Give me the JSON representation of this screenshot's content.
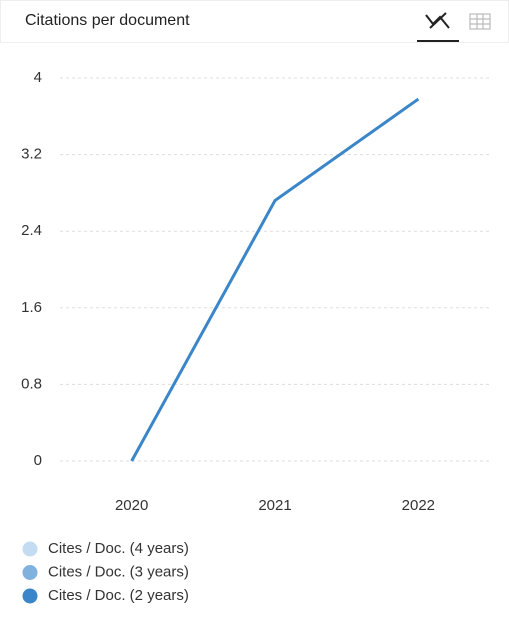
{
  "chart_data": {
    "type": "line",
    "title": "Citations per document",
    "categories": [
      "2020",
      "2021",
      "2022"
    ],
    "series": [
      {
        "name": "Cites / Doc. (4 years)",
        "color": "#c4dcf1",
        "values": [
          null,
          null,
          null
        ]
      },
      {
        "name": "Cites / Doc. (3 years)",
        "color": "#80b2dd",
        "values": [
          null,
          null,
          null
        ]
      },
      {
        "name": "Cites / Doc. (2 years)",
        "color": "#3a86c8",
        "values": [
          0,
          2.72,
          3.78
        ]
      }
    ],
    "ylim": [
      0,
      4
    ],
    "yticks": [
      0,
      0.8,
      1.6,
      2.4,
      3.2,
      4
    ],
    "grid": true,
    "legend": "bottom"
  }
}
